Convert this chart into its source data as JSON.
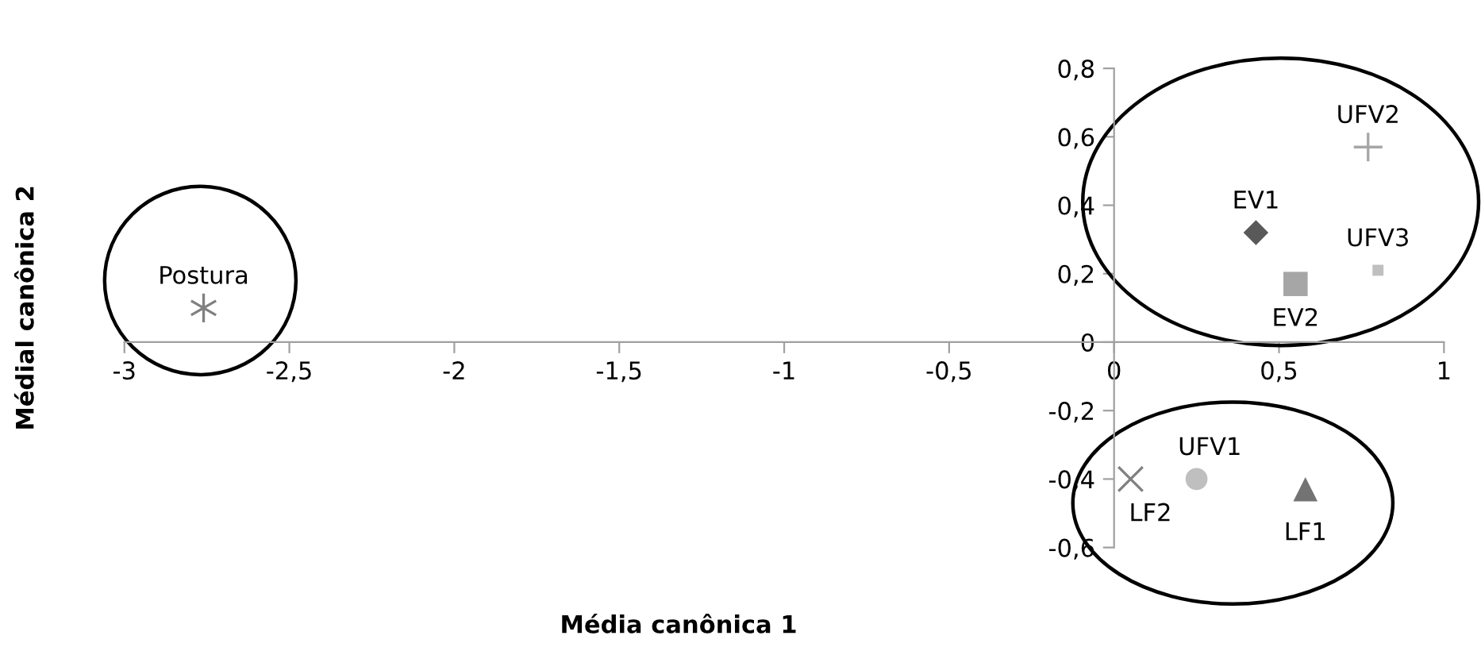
{
  "chart_data": {
    "type": "scatter",
    "xlabel": "Média canônica 1",
    "ylabel": "Médial canônica 2",
    "xlim": [
      -3,
      1
    ],
    "ylim": [
      -0.6,
      0.8
    ],
    "xticks": [
      {
        "value": -3,
        "label": "-3"
      },
      {
        "value": -2.5,
        "label": "-2,5"
      },
      {
        "value": -2,
        "label": "-2"
      },
      {
        "value": -1.5,
        "label": "-1,5"
      },
      {
        "value": -1,
        "label": "-1"
      },
      {
        "value": -0.5,
        "label": "-0,5"
      },
      0,
      {
        "value": 0.5,
        "label": "0,5"
      },
      1
    ],
    "yticks": [
      {
        "value": -0.6,
        "label": "-0,6"
      },
      {
        "value": -0.4,
        "label": "-0,4"
      },
      {
        "value": -0.2,
        "label": "-0,2"
      },
      0,
      {
        "value": 0.2,
        "label": "0,2"
      },
      {
        "value": 0.4,
        "label": "0,4"
      },
      {
        "value": 0.6,
        "label": "0,6"
      },
      {
        "value": 0.8,
        "label": "0,8"
      }
    ],
    "grid": false,
    "legend": false,
    "series": [
      {
        "name": "Postura",
        "color": "#808080",
        "marker": "cross",
        "x": [
          -2.76
        ],
        "values": [
          0.1
        ]
      },
      {
        "name": "EV1",
        "color": "#595959",
        "marker": "diamond",
        "x": [
          0.43
        ],
        "values": [
          0.32
        ]
      },
      {
        "name": "EV2",
        "color": "#a6a6a6",
        "marker": "square",
        "x": [
          0.55
        ],
        "values": [
          0.17
        ]
      },
      {
        "name": "UFV2",
        "color": "#a6a6a6",
        "marker": "plus",
        "x": [
          0.77
        ],
        "values": [
          0.57
        ]
      },
      {
        "name": "UFV3",
        "color": "#bfbfbf",
        "marker": "square",
        "x": [
          0.8
        ],
        "values": [
          0.21
        ]
      },
      {
        "name": "LF2",
        "color": "#808080",
        "marker": "cross",
        "x": [
          0.05
        ],
        "values": [
          -0.4
        ]
      },
      {
        "name": "UFV1",
        "color": "#bfbfbf",
        "marker": "circle",
        "x": [
          0.25
        ],
        "values": [
          -0.4
        ]
      },
      {
        "name": "LF1",
        "color": "#737373",
        "marker": "triangle",
        "x": [
          0.58
        ],
        "values": [
          -0.43
        ]
      }
    ]
  }
}
